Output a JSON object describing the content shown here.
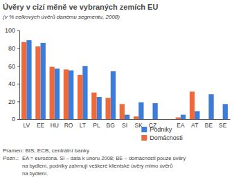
{
  "chart_data": {
    "type": "bar",
    "title": "Úvěry v cizí měně ve vybraných zemích EU",
    "subtitle": "(v % celkových úvěrů danému segmentu, 2008)",
    "categories": [
      "LV",
      "EE",
      "HU",
      "RO",
      "LT",
      "PL",
      "BG",
      "SI",
      "SK",
      "CZ",
      null,
      "EA",
      "AT",
      "BE",
      "SE"
    ],
    "series": [
      {
        "name": "Podniky",
        "color": "#3b7dd8",
        "values": [
          89,
          86,
          57,
          55,
          60,
          25,
          54,
          5,
          19,
          18,
          null,
          5,
          9,
          28,
          17
        ]
      },
      {
        "name": "Domácnosti",
        "color": "#ee6a3c",
        "values": [
          87,
          82,
          59,
          56,
          50,
          30,
          24,
          17,
          3,
          0,
          null,
          2,
          31,
          0,
          0
        ]
      }
    ],
    "ylim": [
      0,
      100
    ],
    "yticks": [
      0,
      20,
      40,
      60,
      80,
      100
    ],
    "grid": false,
    "legend": "lower right",
    "source": "Pramen: BIS, ECB, centrální banky",
    "note_label": "Pozn.:",
    "note_lines": [
      "EA = eurozóna. SI – data k únoru 2008; BE – domácnosti pouze úvěry",
      "na bydlení, podniky zahrnují veškeré klientské úvěry mimo úvěrů",
      "na bydlení."
    ]
  }
}
